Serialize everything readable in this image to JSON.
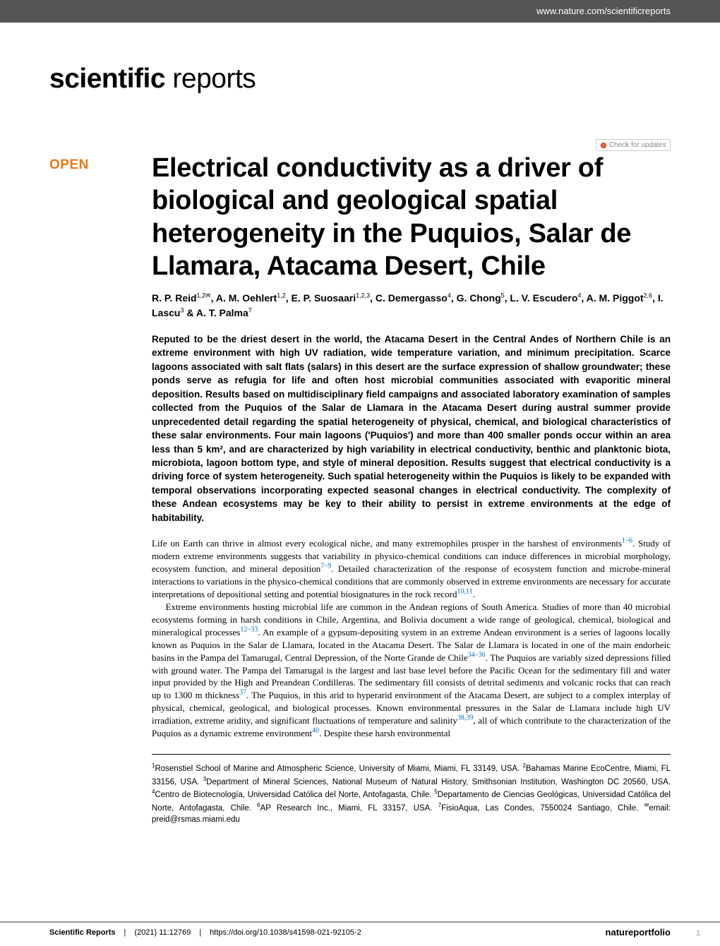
{
  "header": {
    "url": "www.nature.com/scientificreports"
  },
  "brand": {
    "part1": "scientific",
    "part2": "reports"
  },
  "check_updates": "Check for updates",
  "open_badge": "OPEN",
  "title": "Electrical conductivity as a driver of biological and geological spatial heterogeneity in the Puquios, Salar de Llamara, Atacama Desert, Chile",
  "authors_html": "R. P. Reid<sup>1,2✉</sup>, A. M. Oehlert<sup>1,2</sup>, E. P. Suosaari<sup>1,2,3</sup>, C. Demergasso<sup>4</sup>, G. Chong<sup>5</sup>, L. V. Escudero<sup>4</sup>, A. M. Piggot<sup>2,6</sup>, I. Lascu<sup>3</sup> & A. T. Palma<sup>7</sup>",
  "abstract": "Reputed to be the driest desert in the world, the Atacama Desert in the Central Andes of Northern Chile is an extreme environment with high UV radiation, wide temperature variation, and minimum precipitation. Scarce lagoons associated with salt flats (salars) in this desert are the surface expression of shallow groundwater; these ponds serve as refugia for life and often host microbial communities associated with evaporitic mineral deposition. Results based on multidisciplinary field campaigns and associated laboratory examination of samples collected from the Puquios of the Salar de Llamara in the Atacama Desert during austral summer provide unprecedented detail regarding the spatial heterogeneity of physical, chemical, and biological characteristics of these salar environments. Four main lagoons ('Puquios') and more than 400 smaller ponds occur within an area less than 5 km², and are characterized by high variability in electrical conductivity, benthic and planktonic biota, microbiota, lagoon bottom type, and style of mineral deposition. Results suggest that electrical conductivity is a driving force of system heterogeneity. Such spatial heterogeneity within the Puquios is likely to be expanded with temporal observations incorporating expected seasonal changes in electrical conductivity. The complexity of these Andean ecosystems may be key to their ability to persist in extreme environments at the edge of habitability.",
  "body": {
    "para1_a": "Life on Earth can thrive in almost every ecological niche, and many extremophiles prosper in the harshest of environments",
    "para1_b": ". Study of modern extreme environments suggests that variability in physico-chemical conditions can induce differences in microbial morphology, ecosystem function, and mineral deposition",
    "para1_c": ". Detailed characterization of the response of ecosystem function and microbe-mineral interactions to variations in the physico-chemical conditions that are commonly observed in extreme environments are necessary for accurate interpretations of depositional setting and potential biosignatures in the rock record",
    "para1_d": ".",
    "para2_a": "Extreme environments hosting microbial life are common in the Andean regions of South America. Studies of more than 40 microbial ecosystems forming in harsh conditions in Chile, Argentina, and Bolivia document a wide range of geological, chemical, biological and mineralogical processes",
    "para2_b": ". An example of a gypsum-depositing system in an extreme Andean environment is a series of lagoons locally known as Puquios in the Salar de Llamara, located in the Atacama Desert. The Salar de Llamara is located in one of the main endorheic basins in the Pampa del Tamarugal, Central Depression, of the Norte Grande de Chile",
    "para2_c": ". The Puquios are variably sized depressions filled with ground water. The Pampa del Tamarugal is the largest and last base level before the Pacific Ocean for the sedimentary fill and water input provided by the High and Preandean Cordilleras. The sedimentary fill consists of detrital sediments and volcanic rocks that can reach up to 1300 m thickness",
    "para2_d": ". The Puquios, in this arid to hyperarid environment of the Atacama Desert, are subject to a complex interplay of physical, chemical, geological, and biological processes. Known environmental pressures in the Salar de Llamara include high UV irradiation, extreme aridity, and significant fluctuations of temperature and salinity",
    "para2_e": ", all of which contribute to the characterization of the Puquios as a dynamic extreme environment",
    "para2_f": ". Despite these harsh environmental"
  },
  "refs": {
    "r1": "1–6",
    "r2": "7–9",
    "r3": "10,11",
    "r4": "12–33",
    "r5": "34–36",
    "r6": "37",
    "r7": "38,39",
    "r8": "40"
  },
  "affiliations_html": "<sup>1</sup>Rosenstiel School of Marine and Atmospheric Science, University of Miami, Miami, FL 33149, USA. <sup>2</sup>Bahamas Marine EcoCentre, Miami, FL 33156, USA. <sup>3</sup>Department of Mineral Sciences, National Museum of Natural History, Smithsonian Institution, Washington DC 20560, USA. <sup>4</sup>Centro de Biotecnología, Universidad Católica del Norte, Antofagasta, Chile. <sup>5</sup>Departamento de Ciencias Geológicas, Universidad Católica del Norte, Antofagasta, Chile. <sup>6</sup>AP Research Inc., Miami, FL 33157, USA. <sup>7</sup>FisioAqua, Las Condes, 7550024 Santiago, Chile. <sup>✉</sup>email: preid@rsmas.miami.edu",
  "footer": {
    "journal": "Scientific Reports",
    "issue": "(2021) 11:12769",
    "doi": "https://doi.org/10.1038/s41598-021-92105-2",
    "publisher_part1": "nature",
    "publisher_part2": "portfolio",
    "page": "1"
  },
  "colors": {
    "accent": "#e67817",
    "link": "#006eb7",
    "header_bg": "#555555",
    "text": "#000000",
    "background": "#ffffff"
  }
}
